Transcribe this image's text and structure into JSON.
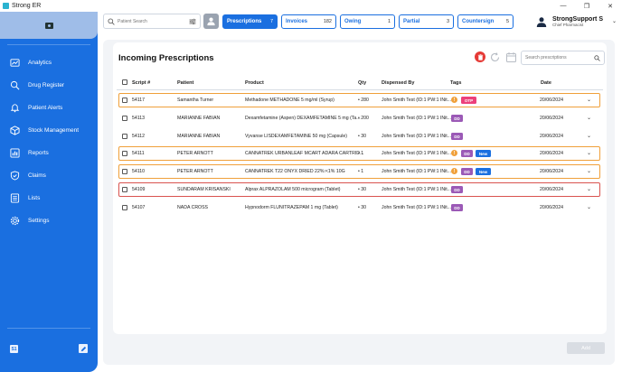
{
  "window": {
    "title": "Strong ER",
    "controls": [
      "—",
      "❐",
      "✕"
    ]
  },
  "sidebar": {
    "items": [
      {
        "label": "Analytics",
        "icon": "analytics-icon"
      },
      {
        "label": "Drug Register",
        "icon": "drug-register-icon"
      },
      {
        "label": "Patient Alerts",
        "icon": "bell-icon"
      },
      {
        "label": "Stock Management",
        "icon": "box-icon"
      },
      {
        "label": "Reports",
        "icon": "bar-chart-icon"
      },
      {
        "label": "Claims",
        "icon": "shield-check-icon"
      },
      {
        "label": "Lists",
        "icon": "list-icon"
      },
      {
        "label": "Settings",
        "icon": "gear-icon"
      }
    ],
    "footer_badge": "S1"
  },
  "topbar": {
    "search_placeholder": "Patient Search",
    "tabs": [
      {
        "label": "Prescriptions",
        "count": "7",
        "active": true
      },
      {
        "label": "Invoices",
        "count": "182",
        "active": false
      },
      {
        "label": "Owing",
        "count": "1",
        "active": false
      },
      {
        "label": "Partial",
        "count": "3",
        "active": false
      },
      {
        "label": "Countersign",
        "count": "5",
        "active": false
      }
    ],
    "user": {
      "name": "StrongSupport S",
      "role": "Chief Pharmacist"
    }
  },
  "panel": {
    "title": "Incoming Prescriptions",
    "search_placeholder": "Search prescriptions",
    "columns": [
      "Script #",
      "Patient",
      "Product",
      "Qty",
      "Dispensed By",
      "Tags",
      "Date"
    ],
    "rows": [
      {
        "script": "54117",
        "patient": "Samantha Turner",
        "product": "Methadone METHADONE 5 mg/ml (Syrup)",
        "qty": "• 280",
        "dispensed_by": "John Smith Test (ID:1 PW:1 INit...",
        "warn": true,
        "tags": [
          "OTP"
        ],
        "date": "20/06/2024",
        "highlight": "orange"
      },
      {
        "script": "54113",
        "patient": "MARIANNE FABIAN",
        "product": "Dexamfetamine (Aspen) DEXAMFETAMINE 5 mg (Ta...",
        "qty": "• 200",
        "dispensed_by": "John Smith Test (ID:1 PW:1 INit...",
        "warn": false,
        "tags": [
          "DD"
        ],
        "date": "20/06/2024",
        "highlight": ""
      },
      {
        "script": "54112",
        "patient": "MARIANNE FABIAN",
        "product": "Vyvanse LISDEXAMFETAMINE 50 mg (Capsule)",
        "qty": "• 30",
        "dispensed_by": "John Smith Test (ID:1 PW:1 INit...",
        "warn": false,
        "tags": [
          "DD"
        ],
        "date": "20/06/2024",
        "highlight": ""
      },
      {
        "script": "54111",
        "patient": "PETER ARNOTT",
        "product": "CANNATREK URBANLEAF MCART ADARA CARTRID...",
        "qty": "• 1",
        "dispensed_by": "John Smith Test (ID:1 PW:1 INit...",
        "warn": true,
        "tags": [
          "DD",
          "New"
        ],
        "date": "20/06/2024",
        "highlight": "orange"
      },
      {
        "script": "54110",
        "patient": "PETER ARNOTT",
        "product": "CANNATREK T22 ONYX DRIED 22%:<1% 10G",
        "qty": "• 1",
        "dispensed_by": "John Smith Test (ID:1 PW:1 INit...",
        "warn": true,
        "tags": [
          "DD",
          "New"
        ],
        "date": "20/06/2024",
        "highlight": "orange"
      },
      {
        "script": "54109",
        "patient": "SUNDARAM KRISANSKI",
        "product": "Alprax ALPRAZOLAM 500 microgram (Tablet)",
        "qty": "• 30",
        "dispensed_by": "John Smith Test (ID:1 PW:1 INit...",
        "warn": false,
        "tags": [
          "DD"
        ],
        "date": "20/06/2024",
        "highlight": "red"
      },
      {
        "script": "54107",
        "patient": "NADA CROSS",
        "product": "Hypnodorm FLUNITRAZEPAM 1 mg (Tablet)",
        "qty": "• 30",
        "dispensed_by": "John Smith Test (ID:1 PW:1 INit...",
        "warn": false,
        "tags": [
          "DD"
        ],
        "date": "20/06/2024",
        "highlight": ""
      }
    ],
    "add_label": "Add"
  },
  "colors": {
    "primary": "#1a6fe0",
    "warning": "#f0a03a",
    "danger": "#d9534f",
    "tag_dd": "#9b59b6",
    "tag_otp": "#ec407a"
  }
}
